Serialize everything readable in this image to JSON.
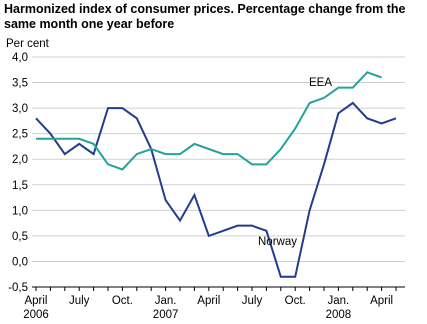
{
  "chart_data": {
    "type": "line",
    "title": "Harmonized index of consumer prices. Percentage change from the same month one year before",
    "y_label": "Per cent",
    "categories": [
      "April 2006",
      null,
      null,
      "July",
      null,
      null,
      "Oct.",
      null,
      null,
      "Jan. 2007",
      null,
      null,
      "April",
      null,
      null,
      "July",
      null,
      null,
      "Oct.",
      null,
      null,
      "Jan. 2008",
      null,
      null,
      "April",
      null
    ],
    "series": [
      {
        "name": "Norway",
        "color": "#233c8c",
        "values": [
          2.8,
          2.5,
          2.1,
          2.3,
          2.1,
          3.0,
          3.0,
          2.8,
          2.2,
          1.2,
          0.8,
          1.3,
          0.5,
          0.6,
          0.7,
          0.7,
          0.6,
          -0.3,
          -0.3,
          1.0,
          1.9,
          2.9,
          3.1,
          2.8,
          2.7,
          2.8
        ]
      },
      {
        "name": "EEA",
        "color": "#24a39b",
        "values": [
          2.4,
          2.4,
          2.4,
          2.4,
          2.3,
          1.9,
          1.8,
          2.1,
          2.2,
          2.1,
          2.1,
          2.3,
          2.2,
          2.1,
          2.1,
          1.9,
          1.9,
          2.2,
          2.6,
          3.1,
          3.2,
          3.4,
          3.4,
          3.7,
          3.6,
          null
        ]
      }
    ],
    "ylim": [
      -0.5,
      4.0
    ],
    "yticks": [
      {
        "value": -0.5,
        "label": "-0,5"
      },
      {
        "value": 0,
        "label": "0,0"
      },
      {
        "value": 0.5,
        "label": "0,5"
      },
      {
        "value": 1,
        "label": "1,0"
      },
      {
        "value": 1.5,
        "label": "1,5"
      },
      {
        "value": 2,
        "label": "2,0"
      },
      {
        "value": 2.5,
        "label": "2,5"
      },
      {
        "value": 3,
        "label": "3,0"
      },
      {
        "value": 3.5,
        "label": "3,5"
      },
      {
        "value": 4,
        "label": "4,0"
      }
    ],
    "grid": true
  }
}
